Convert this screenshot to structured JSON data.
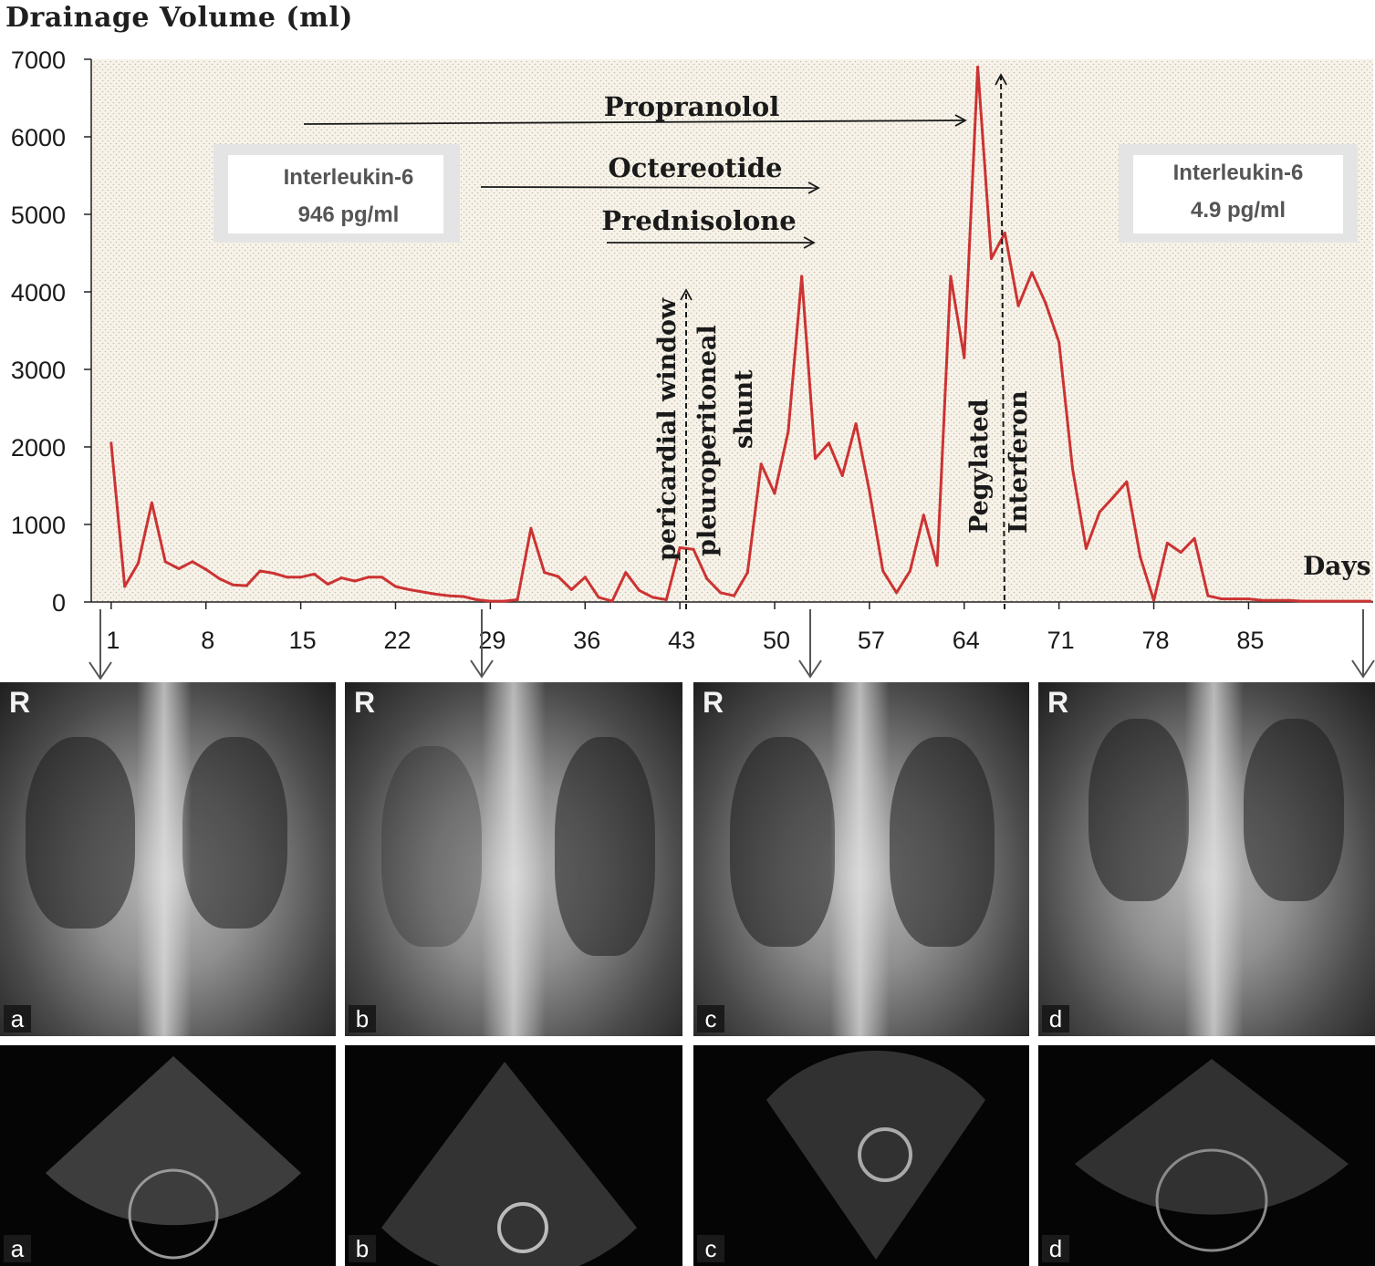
{
  "chart_data": {
    "type": "line",
    "ylabel": "Drainage Volume (ml)",
    "xlabel": "Days",
    "ylim": [
      0,
      7000
    ],
    "xlim": [
      0,
      94
    ],
    "yticks": [
      0,
      1000,
      2000,
      3000,
      4000,
      5000,
      6000,
      7000
    ],
    "xticks": [
      1,
      8,
      15,
      22,
      29,
      36,
      43,
      50,
      57,
      64,
      71,
      78,
      85
    ],
    "grid": false,
    "legend": "none",
    "series_color": "#cc3333",
    "background": "dotted tan",
    "x": [
      1,
      2,
      3,
      4,
      5,
      6,
      7,
      8,
      9,
      10,
      11,
      12,
      13,
      14,
      15,
      16,
      17,
      18,
      19,
      20,
      21,
      22,
      23,
      24,
      25,
      26,
      27,
      28,
      29,
      30,
      31,
      32,
      33,
      34,
      35,
      36,
      37,
      38,
      39,
      40,
      41,
      42,
      43,
      44,
      45,
      46,
      47,
      48,
      49,
      50,
      51,
      52,
      53,
      54,
      55,
      56,
      57,
      58,
      59,
      60,
      61,
      62,
      63,
      64,
      65,
      66,
      67,
      68,
      69,
      70,
      71,
      72,
      73,
      74,
      75,
      76,
      77,
      78,
      79,
      80,
      81,
      82,
      83,
      84,
      85,
      86,
      87,
      88,
      89,
      90,
      91,
      92,
      93,
      94
    ],
    "y": [
      2050,
      200,
      500,
      1280,
      520,
      430,
      520,
      420,
      300,
      220,
      210,
      400,
      370,
      320,
      320,
      360,
      230,
      310,
      270,
      320,
      320,
      200,
      160,
      130,
      100,
      80,
      70,
      30,
      10,
      10,
      30,
      950,
      380,
      330,
      160,
      320,
      60,
      10,
      380,
      150,
      60,
      30,
      700,
      680,
      300,
      120,
      80,
      380,
      1780,
      1400,
      2200,
      4200,
      1850,
      2050,
      1630,
      2300,
      1430,
      400,
      120,
      400,
      1120,
      470,
      4200,
      3150,
      6900,
      4430,
      4760,
      3820,
      4250,
      3860,
      3350,
      1720,
      690,
      1160,
      1350,
      1550,
      580,
      20,
      760,
      640,
      820,
      80,
      40,
      40,
      40,
      20,
      20,
      20,
      10,
      10,
      10,
      10,
      10,
      10
    ]
  },
  "interventions": {
    "propranolol": "Propranolol",
    "octreotide": "Octereotide",
    "prednisolone": "Prednisolone",
    "pericardial_window": "pericardial window",
    "pleuroperitoneal": "pleuroperitoneal",
    "shunt": "shunt",
    "pegylated": "Pegylated",
    "interferon": "Interferon"
  },
  "il6_boxes": {
    "left": {
      "line1": "Interleukin-6",
      "line2": "946 pg/ml"
    },
    "right": {
      "line1": "Interleukin-6",
      "line2": "4.9 pg/ml"
    }
  },
  "xray_panels": [
    {
      "label": "a",
      "marker": "R"
    },
    {
      "label": "b",
      "marker": "R"
    },
    {
      "label": "c",
      "marker": "R"
    },
    {
      "label": "d",
      "marker": "R"
    }
  ],
  "echo_panels": [
    {
      "label": "a"
    },
    {
      "label": "b"
    },
    {
      "label": "c"
    },
    {
      "label": "d"
    }
  ]
}
